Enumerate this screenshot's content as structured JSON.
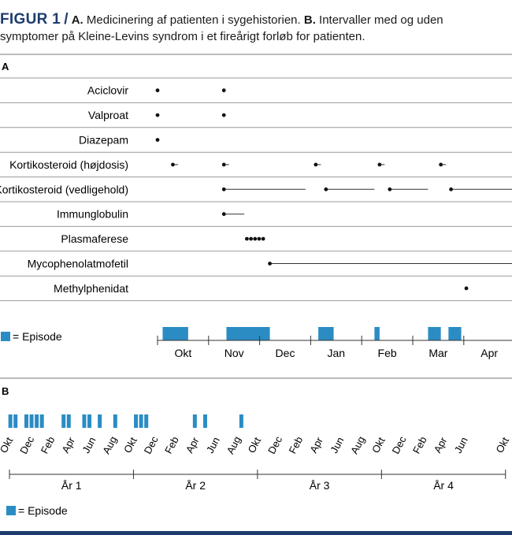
{
  "caption": {
    "figure_label": "FIGUR 1",
    "slash": "/",
    "a_label": "A.",
    "a_text": "Medicinering af patienten i sygehistorien.",
    "b_label": "B.",
    "b_text": "Intervaller med og uden symptomer på Kleine-Levins syndrom i et fireårigt forløb for patienten."
  },
  "colors": {
    "episode": "#2b8cc4",
    "title": "#1d3c6e",
    "rule": "#999999"
  },
  "chart_data": [
    {
      "panel": "A",
      "type": "timeline",
      "months": [
        "Okt",
        "Nov",
        "Dec",
        "Jan",
        "Feb",
        "Mar",
        "Apr"
      ],
      "legend": "= Episode",
      "drugs": [
        {
          "name": "Aciclovir",
          "dots": [
            1.0,
            2.3
          ],
          "lines": []
        },
        {
          "name": "Valproat",
          "dots": [
            1.0,
            2.3
          ],
          "lines": []
        },
        {
          "name": "Diazepam",
          "dots": [
            1.0
          ],
          "lines": []
        },
        {
          "name": "Kortikosteroid (højdosis)",
          "dots": [
            1.3,
            2.3,
            4.1,
            5.35,
            6.55
          ],
          "lines": [
            [
              1.3,
              1.4
            ],
            [
              2.3,
              2.4
            ],
            [
              4.1,
              4.2
            ],
            [
              5.35,
              5.45
            ],
            [
              6.55,
              6.65
            ]
          ]
        },
        {
          "name": "Kortikosteroid (vedligehold)",
          "dots": [
            2.3,
            4.3,
            5.55,
            6.75
          ],
          "lines": [
            [
              2.3,
              3.9
            ],
            [
              4.3,
              5.25
            ],
            [
              5.55,
              6.3
            ],
            [
              6.75,
              8.0
            ]
          ]
        },
        {
          "name": "Immunglobulin",
          "dots": [
            2.3
          ],
          "lines": [
            [
              2.3,
              2.7
            ]
          ]
        },
        {
          "name": "Plasmaferese",
          "dots": [
            2.75,
            2.83,
            2.91,
            2.99,
            3.07
          ],
          "lines": []
        },
        {
          "name": "Mycophenolatmofetil",
          "dots": [
            3.2
          ],
          "lines": [
            [
              3.2,
              8.0
            ]
          ]
        },
        {
          "name": "Methylphenidat",
          "dots": [
            7.05
          ],
          "lines": []
        }
      ],
      "episodes": [
        [
          1.1,
          1.6
        ],
        [
          2.35,
          3.2
        ],
        [
          4.15,
          4.45
        ],
        [
          5.25,
          5.35
        ],
        [
          6.3,
          6.55
        ],
        [
          6.7,
          6.95
        ]
      ]
    },
    {
      "panel": "B",
      "type": "timeline",
      "month_labels": [
        "Okt",
        "Dec",
        "Feb",
        "Apr",
        "Jun",
        "Aug",
        "Okt",
        "Dec",
        "Feb",
        "Apr",
        "Jun",
        "Aug",
        "Okt",
        "Dec",
        "Feb",
        "Apr",
        "Jun",
        "Aug",
        "Okt",
        "Dec",
        "Feb",
        "Apr",
        "Jun",
        "Okt"
      ],
      "years": [
        "År 1",
        "År 2",
        "År 3",
        "År 4"
      ],
      "legend": "= Episode",
      "episodes_month": [
        0.05,
        0.55,
        1.6,
        2.1,
        2.6,
        3.1,
        5.2,
        5.7,
        7.2,
        7.7,
        8.7,
        10.2,
        12.2,
        12.7,
        13.2,
        17.9,
        18.9,
        22.4
      ]
    }
  ]
}
